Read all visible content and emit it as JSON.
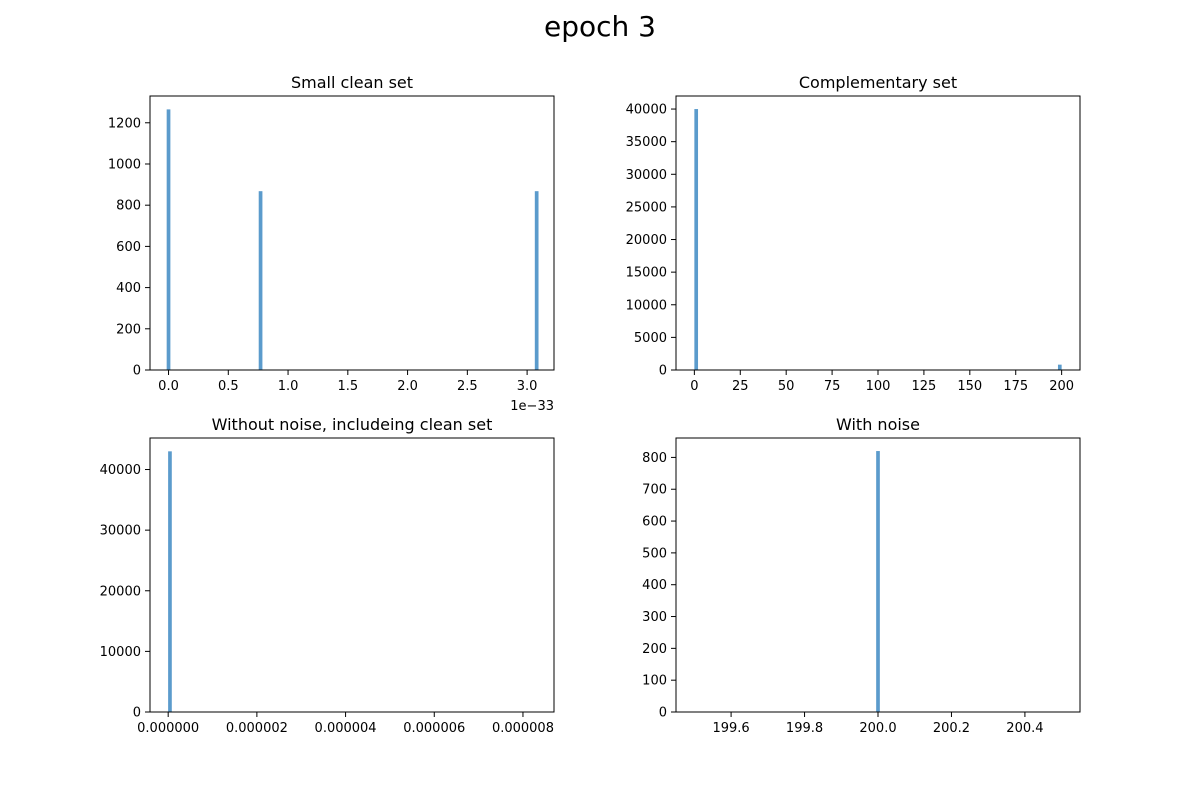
{
  "figure": {
    "title": "epoch 3"
  },
  "colors": {
    "bar": "#5b9bcc",
    "axes": "#000000"
  },
  "chart_data": [
    {
      "type": "bar",
      "title": "Small clean set",
      "xlabel": "",
      "ylabel": "",
      "xlim": [
        -0.155,
        3.225
      ],
      "ylim": [
        0,
        1330
      ],
      "x_ticks": [
        0.0,
        0.5,
        1.0,
        1.5,
        2.0,
        2.5,
        3.0
      ],
      "x_tick_labels": [
        "0.0",
        "0.5",
        "1.0",
        "1.5",
        "2.0",
        "2.5",
        "3.0"
      ],
      "x_offset_text": "1e−33",
      "y_ticks": [
        0,
        200,
        400,
        600,
        800,
        1000,
        1200
      ],
      "y_tick_labels": [
        "0",
        "200",
        "400",
        "600",
        "800",
        "1000",
        "1200"
      ],
      "bar_width": 0.031,
      "bars": [
        {
          "x": 0.0,
          "value": 1265
        },
        {
          "x": 0.77,
          "value": 868
        },
        {
          "x": 3.08,
          "value": 868
        }
      ]
    },
    {
      "type": "bar",
      "title": "Complementary set",
      "xlabel": "",
      "ylabel": "",
      "xlim": [
        -10,
        210
      ],
      "ylim": [
        0,
        42000
      ],
      "x_ticks": [
        0,
        25,
        50,
        75,
        100,
        125,
        150,
        175,
        200
      ],
      "x_tick_labels": [
        "0",
        "25",
        "50",
        "75",
        "100",
        "125",
        "150",
        "175",
        "200"
      ],
      "y_ticks": [
        0,
        5000,
        10000,
        15000,
        20000,
        25000,
        30000,
        35000,
        40000
      ],
      "y_tick_labels": [
        "0",
        "5000",
        "10000",
        "15000",
        "20000",
        "25000",
        "30000",
        "35000",
        "40000"
      ],
      "bar_width": 2,
      "bars": [
        {
          "x": 1,
          "value": 40000
        },
        {
          "x": 199,
          "value": 820
        }
      ]
    },
    {
      "type": "bar",
      "title": "Without noise, includeing clean set",
      "xlabel": "",
      "ylabel": "",
      "xlim": [
        -4.1e-07,
        8.7e-06
      ],
      "ylim": [
        0,
        45200
      ],
      "x_ticks": [
        0,
        2e-06,
        4e-06,
        6e-06,
        8e-06
      ],
      "x_tick_labels": [
        "0.000000",
        "0.000002",
        "0.000004",
        "0.000006",
        "0.000008"
      ],
      "y_ticks": [
        0,
        10000,
        20000,
        30000,
        40000
      ],
      "y_tick_labels": [
        "0",
        "10000",
        "20000",
        "30000",
        "40000"
      ],
      "bar_width": 8.3e-08,
      "bars": [
        {
          "x": 4e-08,
          "value": 43000
        }
      ]
    },
    {
      "type": "bar",
      "title": "With noise",
      "xlabel": "",
      "ylabel": "",
      "xlim": [
        199.45,
        200.55
      ],
      "ylim": [
        0,
        861
      ],
      "x_ticks": [
        199.6,
        199.8,
        200.0,
        200.2,
        200.4
      ],
      "x_tick_labels": [
        "199.6",
        "199.8",
        "200.0",
        "200.2",
        "200.4"
      ],
      "y_ticks": [
        0,
        100,
        200,
        300,
        400,
        500,
        600,
        700,
        800
      ],
      "y_tick_labels": [
        "0",
        "100",
        "200",
        "300",
        "400",
        "500",
        "600",
        "700",
        "800"
      ],
      "bar_width": 0.01,
      "bars": [
        {
          "x": 200.0,
          "value": 820
        }
      ]
    }
  ]
}
